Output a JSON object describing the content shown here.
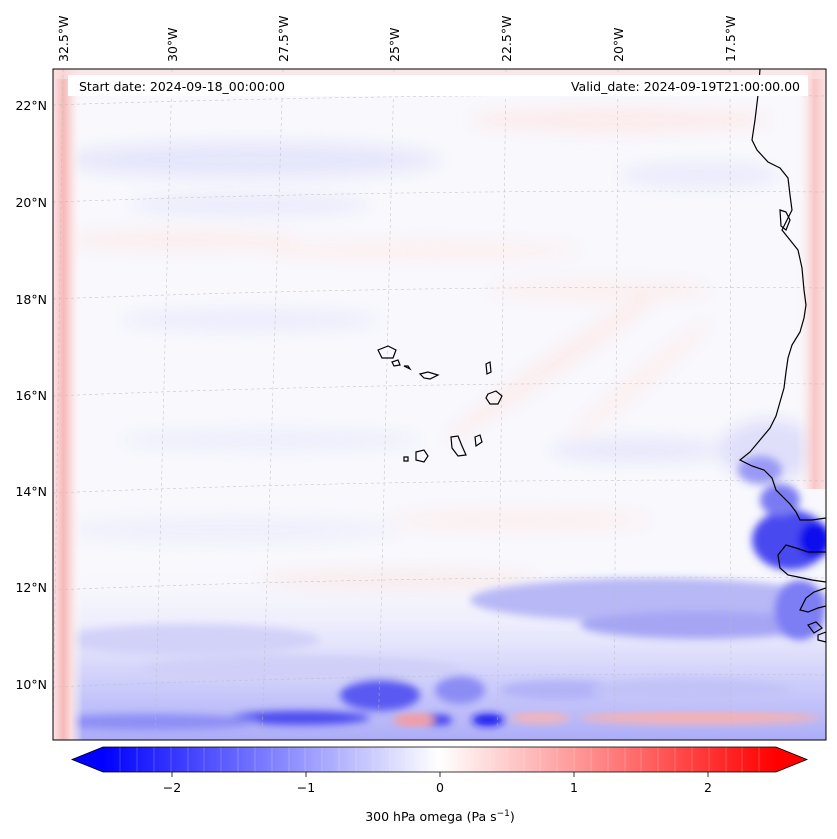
{
  "header": {
    "start_date": "Start date: 2024-09-18_00:00:00",
    "valid_date": "Valid_date: 2024-09-19T21:00:00.00"
  },
  "lon_ticks": [
    "32.5°W",
    "30°W",
    "27.5°W",
    "25°W",
    "22.5°W",
    "20°W",
    "17.5°W"
  ],
  "lat_ticks": [
    "22°N",
    "20°N",
    "18°N",
    "16°N",
    "14°N",
    "12°N",
    "10°N"
  ],
  "colorbar": {
    "ticks": [
      "−2",
      "−1",
      "0",
      "1",
      "2"
    ],
    "label": "300 hPa omega (Pa s",
    "label_exp": "−1",
    "label_close": ")",
    "colormap": "bwr",
    "range": [
      -2.75,
      2.75
    ],
    "extend": "both"
  },
  "colors": {
    "negative": "#0000ff",
    "positive": "#ff0000",
    "neutral": "#ffffff",
    "coastline": "#000000",
    "gridline": "#bbbbbb"
  },
  "map": {
    "projection": "lambert-conformal",
    "extent_lon": [
      -33.2,
      -15.9
    ],
    "extent_lat": [
      8.9,
      22.8
    ],
    "features": [
      "west-africa-coastline",
      "cape-verde-islands"
    ]
  }
}
